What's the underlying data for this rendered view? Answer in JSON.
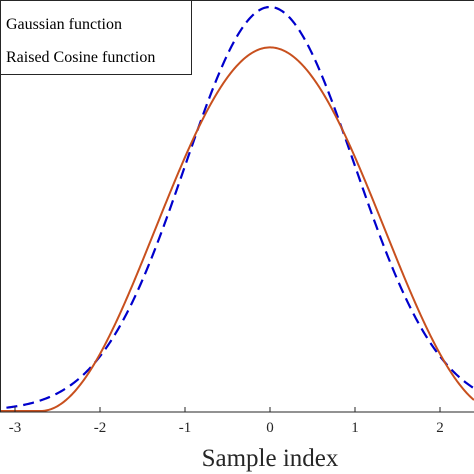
{
  "chart_data": {
    "type": "line",
    "xlabel": "Sample index",
    "ylabel": "",
    "xlim": [
      -3.3,
      2.4
    ],
    "ylim": [
      0,
      1
    ],
    "x_ticks": [
      "-3",
      "-2",
      "-1",
      "0",
      "1",
      "2"
    ],
    "x_tick_values": [
      -3,
      -2,
      -1,
      0,
      1,
      2
    ],
    "legend_position": "top-left",
    "grid": false,
    "series": [
      {
        "name": "Gaussian function",
        "function": "gaussian",
        "sigma": 1,
        "peak": 1.0,
        "color": "#0000cc",
        "dash": "dashed"
      },
      {
        "name": "Raised Cosine function",
        "function": "raised-cosine",
        "half_width": 2.7,
        "peak": 0.9,
        "color": "#c8501e",
        "dash": "solid"
      }
    ]
  }
}
